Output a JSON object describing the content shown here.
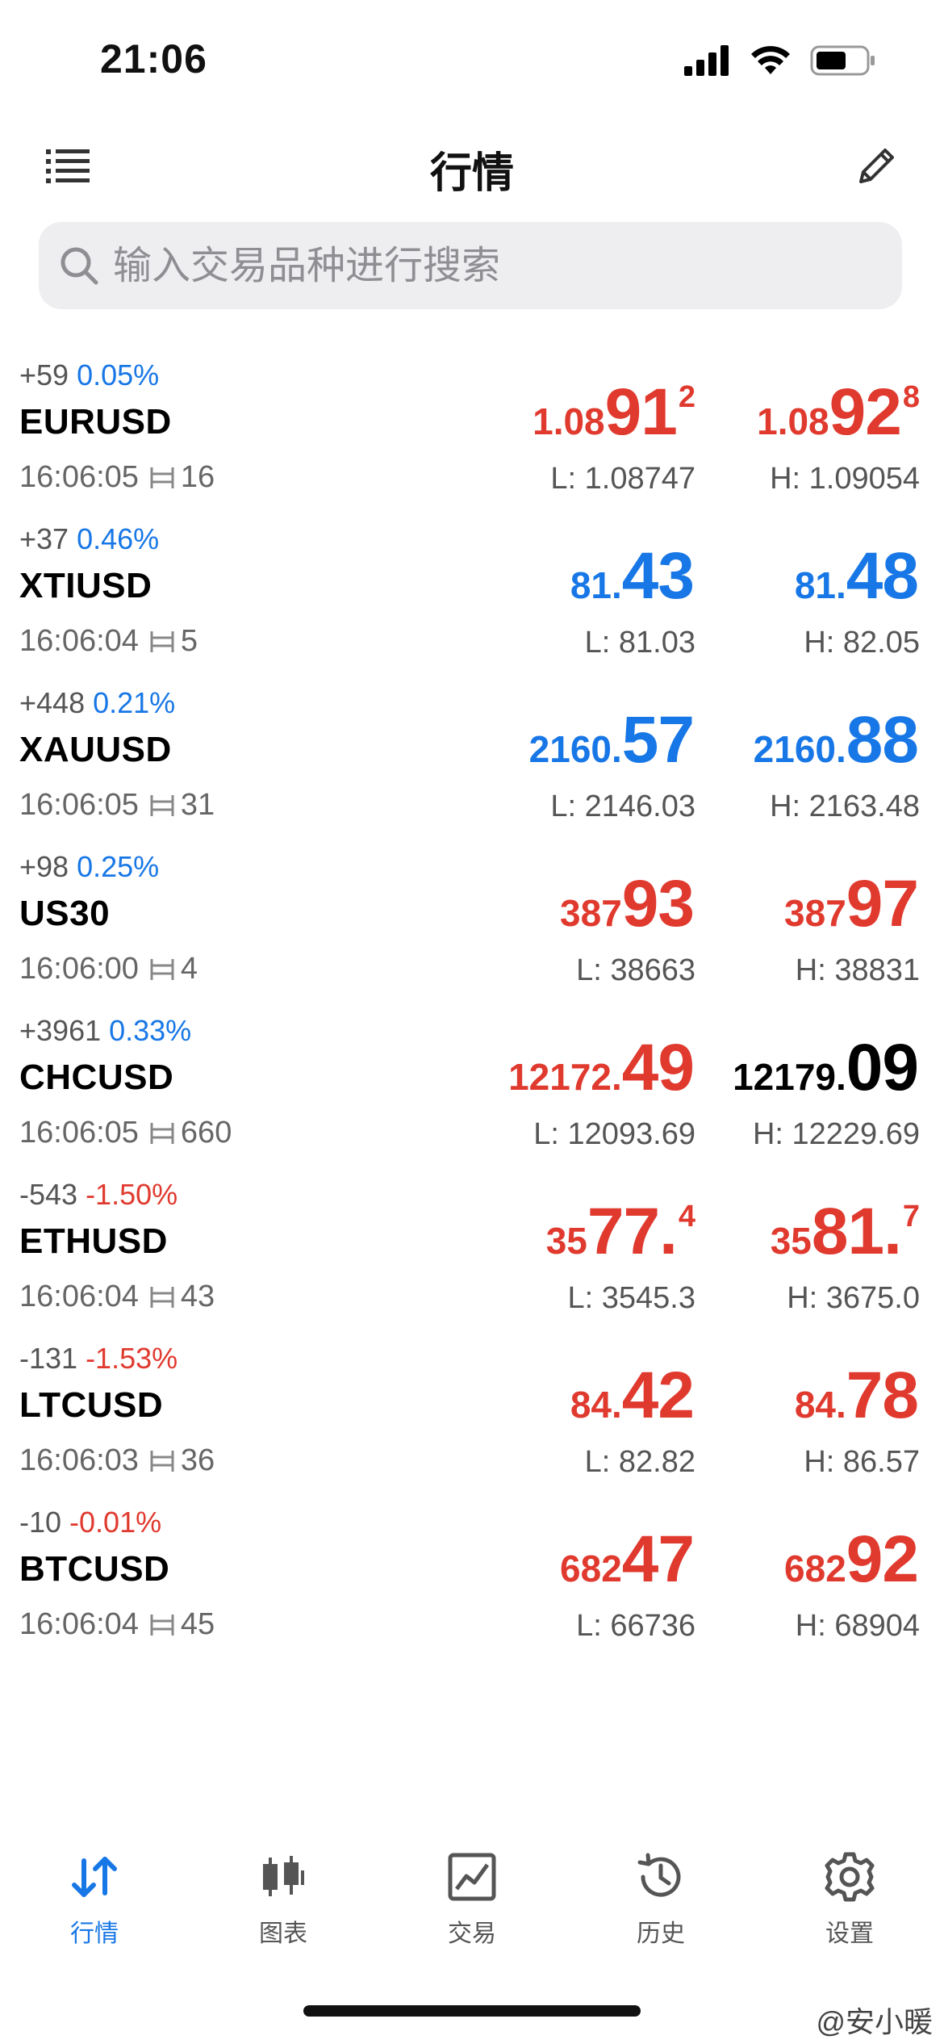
{
  "status_bar": {
    "time": "21:06"
  },
  "header": {
    "title": "行情"
  },
  "search": {
    "placeholder": "输入交易品种进行搜索"
  },
  "colors": {
    "up": "#1877e6",
    "down": "#e03a2f",
    "neutral": "#000000"
  },
  "quotes": [
    {
      "change": "+59",
      "pct": "0.05%",
      "symbol": "EURUSD",
      "time": "16:06:05",
      "spread": "16",
      "bid": {
        "small": "1.08",
        "big": "91",
        "sup": "2"
      },
      "ask": {
        "small": "1.08",
        "big": "92",
        "sup": "8"
      },
      "low": "L: 1.08747",
      "high": "H: 1.09054"
    },
    {
      "change": "+37",
      "pct": "0.46%",
      "symbol": "XTIUSD",
      "time": "16:06:04",
      "spread": "5",
      "bid": {
        "small": "81.",
        "big": "43",
        "sup": ""
      },
      "ask": {
        "small": "81.",
        "big": "48",
        "sup": ""
      },
      "low": "L: 81.03",
      "high": "H: 82.05"
    },
    {
      "change": "+448",
      "pct": "0.21%",
      "symbol": "XAUUSD",
      "time": "16:06:05",
      "spread": "31",
      "bid": {
        "small": "2160.",
        "big": "57",
        "sup": ""
      },
      "ask": {
        "small": "2160.",
        "big": "88",
        "sup": ""
      },
      "low": "L: 2146.03",
      "high": "H: 2163.48"
    },
    {
      "change": "+98",
      "pct": "0.25%",
      "symbol": "US30",
      "time": "16:06:00",
      "spread": "4",
      "bid": {
        "small": "387",
        "big": "93",
        "sup": ""
      },
      "ask": {
        "small": "387",
        "big": "97",
        "sup": ""
      },
      "low": "L: 38663",
      "high": "H: 38831"
    },
    {
      "change": "+3961",
      "pct": "0.33%",
      "symbol": "CHCUSD",
      "time": "16:06:05",
      "spread": "660",
      "bid": {
        "small": "12172.",
        "big": "49",
        "sup": ""
      },
      "ask": {
        "small": "12179.",
        "big": "09",
        "sup": ""
      },
      "low": "L: 12093.69",
      "high": "H: 12229.69"
    },
    {
      "change": "-543",
      "pct": "-1.50%",
      "symbol": "ETHUSD",
      "time": "16:06:04",
      "spread": "43",
      "bid": {
        "small": "35",
        "big": "77.",
        "sup": "4"
      },
      "ask": {
        "small": "35",
        "big": "81.",
        "sup": "7"
      },
      "low": "L: 3545.3",
      "high": "H: 3675.0"
    },
    {
      "change": "-131",
      "pct": "-1.53%",
      "symbol": "LTCUSD",
      "time": "16:06:03",
      "spread": "36",
      "bid": {
        "small": "84.",
        "big": "42",
        "sup": ""
      },
      "ask": {
        "small": "84.",
        "big": "78",
        "sup": ""
      },
      "low": "L: 82.82",
      "high": "H: 86.57"
    },
    {
      "change": "-10",
      "pct": "-0.01%",
      "symbol": "BTCUSD",
      "time": "16:06:04",
      "spread": "45",
      "bid": {
        "small": "682",
        "big": "47",
        "sup": ""
      },
      "ask": {
        "small": "682",
        "big": "92",
        "sup": ""
      },
      "low": "L: 66736",
      "high": "H: 68904"
    }
  ],
  "quote_colors": [
    {
      "pct": "blue",
      "bid": "red",
      "ask": "red"
    },
    {
      "pct": "blue",
      "bid": "blue",
      "ask": "blue"
    },
    {
      "pct": "blue",
      "bid": "blue",
      "ask": "blue"
    },
    {
      "pct": "blue",
      "bid": "red",
      "ask": "red"
    },
    {
      "pct": "blue",
      "bid": "red",
      "ask": "black"
    },
    {
      "pct": "red",
      "bid": "red",
      "ask": "red"
    },
    {
      "pct": "red",
      "bid": "red",
      "ask": "red"
    },
    {
      "pct": "red",
      "bid": "red",
      "ask": "red"
    }
  ],
  "tabbar": {
    "items": [
      {
        "label": "行情",
        "icon": "quotes-arrows-icon",
        "active": true
      },
      {
        "label": "图表",
        "icon": "candlestick-chart-icon",
        "active": false
      },
      {
        "label": "交易",
        "icon": "trade-chart-icon",
        "active": false
      },
      {
        "label": "历史",
        "icon": "history-clock-icon",
        "active": false
      },
      {
        "label": "设置",
        "icon": "settings-gear-icon",
        "active": false
      }
    ]
  },
  "watermark": "@安小暖"
}
